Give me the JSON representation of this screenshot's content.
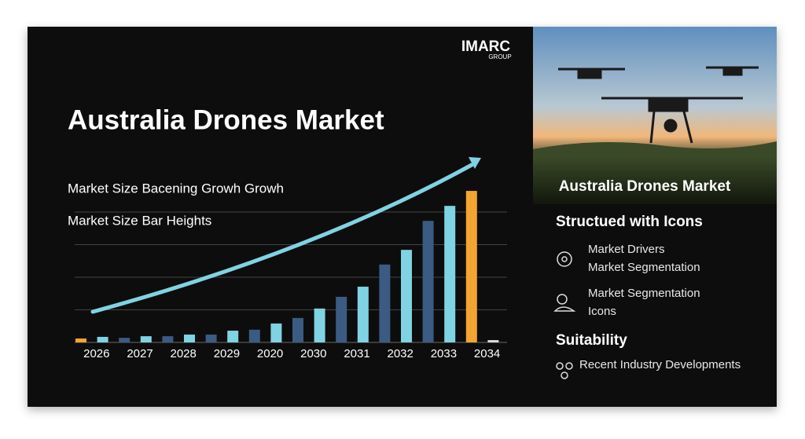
{
  "logo": {
    "name": "IMARC",
    "sub": "GROUP"
  },
  "header": {
    "title": "Australia Drones Market",
    "line1": "Market Size Bacening  Growh Growh",
    "line2": "Market Size Bar Heights"
  },
  "photo": {
    "caption": "Australia Drones Market"
  },
  "side": {
    "heading1": "Structued with Icons",
    "items": [
      {
        "lines": [
          "Market Drivers",
          "Market Segmentation"
        ]
      },
      {
        "lines": [
          "Market Segmentation",
          "Icons"
        ]
      }
    ],
    "heading2": "Suitability",
    "item3": "Recent Industry Developments"
  },
  "chart_data": {
    "type": "bar",
    "categories": [
      "2026",
      null,
      "2027",
      null,
      "2028",
      null,
      "2029",
      null,
      "2020",
      null,
      "2030",
      null,
      "2031",
      null,
      "2032",
      null,
      "2033",
      null,
      "2034",
      null
    ],
    "values": [
      0.12,
      0.17,
      0.14,
      0.19,
      0.19,
      0.24,
      0.24,
      0.36,
      0.39,
      0.58,
      0.75,
      1.04,
      1.4,
      1.71,
      2.39,
      2.84,
      3.73,
      4.19,
      4.65,
      0.07
    ],
    "colors": [
      "#f2a531",
      "#7fd3e3",
      "#3b5b82",
      "#7fd3e3",
      "#3b5b82",
      "#7fd3e3",
      "#3b5b82",
      "#7fd3e3",
      "#3b5b82",
      "#7fd3e3",
      "#3b5b82",
      "#7fd3e3",
      "#3b5b82",
      "#7fd3e3",
      "#3b5b82",
      "#7fd3e3",
      "#3b5b82",
      "#7fd3e3",
      "#f2a531",
      "#dddddd"
    ],
    "ylim": [
      0,
      4.7
    ],
    "yticks": [
      1,
      2,
      3,
      4
    ],
    "grid": true
  }
}
